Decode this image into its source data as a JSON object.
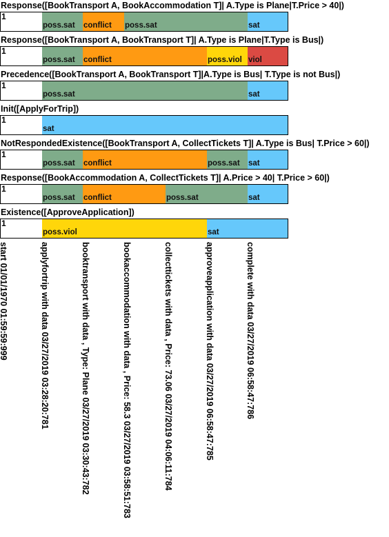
{
  "colors": {
    "poss.sat": "#7fac8a",
    "conflict": "#ff9a12",
    "poss.viol": "#ffd60a",
    "sat": "#66c8fb",
    "viol": "#db4a43",
    "none": "#ffffff"
  },
  "constraints": [
    {
      "title": "Response([BookTransport A, BookAccommodation T]| A.Type is Plane|T.Price > 40|)",
      "index": "1",
      "segments": [
        {
          "state": "none",
          "label": ""
        },
        {
          "state": "poss.sat",
          "label": "poss.sat"
        },
        {
          "state": "conflict",
          "label": "conflict"
        },
        {
          "state": "poss.sat",
          "label": "poss.sat"
        },
        {
          "state": "poss.sat",
          "label": ""
        },
        {
          "state": "poss.sat",
          "label": ""
        },
        {
          "state": "sat",
          "label": "sat"
        }
      ]
    },
    {
      "title": "Response([BookTransport A, BookTransport T]| A.Type is Plane|T.Type is Bus|)",
      "index": "1",
      "segments": [
        {
          "state": "none",
          "label": ""
        },
        {
          "state": "poss.sat",
          "label": "poss.sat"
        },
        {
          "state": "conflict",
          "label": "conflict"
        },
        {
          "state": "conflict",
          "label": ""
        },
        {
          "state": "conflict",
          "label": ""
        },
        {
          "state": "poss.viol",
          "label": "poss.viol"
        },
        {
          "state": "viol",
          "label": "viol"
        }
      ]
    },
    {
      "title": "Precedence([BookTransport A, BookTransport T]|A.Type is Bus| T.Type is not Bus|)",
      "index": "1",
      "segments": [
        {
          "state": "none",
          "label": ""
        },
        {
          "state": "poss.sat",
          "label": "poss.sat"
        },
        {
          "state": "poss.sat",
          "label": ""
        },
        {
          "state": "poss.sat",
          "label": ""
        },
        {
          "state": "poss.sat",
          "label": ""
        },
        {
          "state": "poss.sat",
          "label": ""
        },
        {
          "state": "sat",
          "label": "sat"
        }
      ]
    },
    {
      "title": "Init([ApplyForTrip])",
      "index": "1",
      "segments": [
        {
          "state": "none",
          "label": ""
        },
        {
          "state": "sat",
          "label": "sat"
        },
        {
          "state": "sat",
          "label": ""
        },
        {
          "state": "sat",
          "label": ""
        },
        {
          "state": "sat",
          "label": ""
        },
        {
          "state": "sat",
          "label": ""
        },
        {
          "state": "sat",
          "label": ""
        }
      ]
    },
    {
      "title": "NotRespondedExistence([BookTransport A, CollectTickets T]| A.Type is Bus| T.Price > 60|)",
      "index": "1",
      "segments": [
        {
          "state": "none",
          "label": ""
        },
        {
          "state": "poss.sat",
          "label": "poss.sat"
        },
        {
          "state": "conflict",
          "label": "conflict"
        },
        {
          "state": "conflict",
          "label": ""
        },
        {
          "state": "conflict",
          "label": ""
        },
        {
          "state": "poss.sat",
          "label": "poss.sat"
        },
        {
          "state": "sat",
          "label": "sat"
        }
      ]
    },
    {
      "title": "Response([BookAccommodation A, CollectTickets T]| A.Price > 40| T.Price > 60|)",
      "index": "1",
      "segments": [
        {
          "state": "none",
          "label": ""
        },
        {
          "state": "poss.sat",
          "label": "poss.sat"
        },
        {
          "state": "conflict",
          "label": "conflict"
        },
        {
          "state": "conflict",
          "label": ""
        },
        {
          "state": "poss.sat",
          "label": "poss.sat"
        },
        {
          "state": "poss.sat",
          "label": ""
        },
        {
          "state": "sat",
          "label": "sat"
        }
      ]
    },
    {
      "title": "Existence([ApproveApplication])",
      "index": "1",
      "segments": [
        {
          "state": "none",
          "label": ""
        },
        {
          "state": "poss.viol",
          "label": "poss.viol"
        },
        {
          "state": "poss.viol",
          "label": ""
        },
        {
          "state": "poss.viol",
          "label": ""
        },
        {
          "state": "poss.viol",
          "label": ""
        },
        {
          "state": "sat",
          "label": "sat"
        },
        {
          "state": "sat",
          "label": ""
        }
      ]
    }
  ],
  "events": [
    "start 01/01/1970 01:59:59:999",
    "applyfortrip with data  03/27/2019 03:28:20:781",
    "booktransport with data , Type: Plane 03/27/2019 03:30:43:782",
    "bookaccommodation with data , Price: 58.3 03/27/2019 03:58:51:783",
    "collecttickets with data , Price: 73.06 03/27/2019 04:06:11:784",
    "approveapplication with data  03/27/2019 06:58:47:785",
    "complete with data  03/27/2019 06:58:47:786"
  ]
}
